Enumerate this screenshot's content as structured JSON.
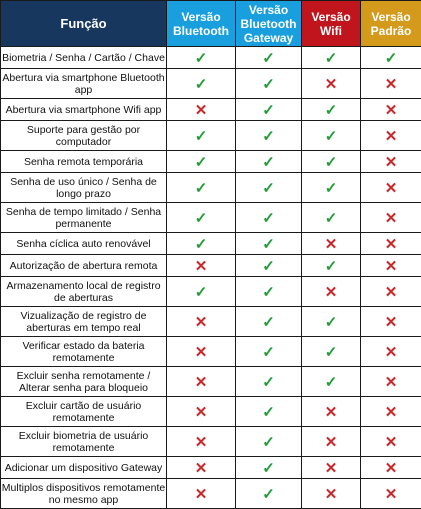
{
  "table": {
    "headers": [
      {
        "lines": [
          "Função"
        ],
        "color": "#17375e"
      },
      {
        "lines": [
          "Versão",
          "Bluetooth"
        ],
        "color": "#1a9fde"
      },
      {
        "lines": [
          "Versão",
          "Bluetooth",
          "Gateway"
        ],
        "color": "#1a9fde"
      },
      {
        "lines": [
          "Versão",
          "Wifi"
        ],
        "color": "#c0151c"
      },
      {
        "lines": [
          "Versão",
          "Padrão"
        ],
        "color": "#d49a1c"
      }
    ],
    "symbols": {
      "yes": "✓",
      "no": "✕",
      "yes_color": "#1e9e35",
      "no_color": "#c8282b"
    },
    "rows": [
      {
        "feature": "Biometria / Senha / Cartão / Chave",
        "lines": 1,
        "values": [
          "yes",
          "yes",
          "yes",
          "yes"
        ]
      },
      {
        "feature": "Abertura via smartphone Bluetooth app",
        "lines": 2,
        "values": [
          "yes",
          "yes",
          "no",
          "no"
        ]
      },
      {
        "feature": "Abertura via smartphone Wifi app",
        "lines": 1,
        "values": [
          "no",
          "yes",
          "yes",
          "no"
        ]
      },
      {
        "feature": "Suporte para gestão por computador",
        "lines": 2,
        "values": [
          "yes",
          "yes",
          "yes",
          "no"
        ]
      },
      {
        "feature": "Senha remota temporária",
        "lines": 1,
        "values": [
          "yes",
          "yes",
          "yes",
          "no"
        ]
      },
      {
        "feature": "Senha de uso único / Senha de longo prazo",
        "lines": 2,
        "values": [
          "yes",
          "yes",
          "yes",
          "no"
        ]
      },
      {
        "feature": "Senha de tempo limitado / Senha permanente",
        "lines": 2,
        "values": [
          "yes",
          "yes",
          "yes",
          "no"
        ]
      },
      {
        "feature": "Senha cíclica auto renovável",
        "lines": 1,
        "values": [
          "yes",
          "yes",
          "no",
          "no"
        ]
      },
      {
        "feature": "Autorização de abertura remota",
        "lines": 1,
        "values": [
          "no",
          "yes",
          "yes",
          "no"
        ]
      },
      {
        "feature": "Armazenamento local de registro de aberturas",
        "lines": 2,
        "values": [
          "yes",
          "yes",
          "no",
          "no"
        ]
      },
      {
        "feature": "Vizualização de registro de aberturas em tempo real",
        "lines": 2,
        "values": [
          "no",
          "yes",
          "yes",
          "no"
        ]
      },
      {
        "feature": "Verificar estado da bateria remotamente",
        "lines": 2,
        "values": [
          "no",
          "yes",
          "yes",
          "no"
        ]
      },
      {
        "feature": "Excluir senha remotamente / Alterar senha para bloqueio",
        "lines": 2,
        "values": [
          "no",
          "yes",
          "yes",
          "no"
        ]
      },
      {
        "feature": "Excluir cartão de usuário remotamente",
        "lines": 2,
        "values": [
          "no",
          "yes",
          "no",
          "no"
        ]
      },
      {
        "feature": "Excluir biometria de usuário remotamente",
        "lines": 2,
        "values": [
          "no",
          "yes",
          "no",
          "no"
        ]
      },
      {
        "feature": "Adicionar um dispositivo Gateway",
        "lines": 1,
        "values": [
          "no",
          "yes",
          "no",
          "no"
        ]
      },
      {
        "feature": "Multiplos dispositivos remotamente no mesmo app",
        "lines": 2,
        "values": [
          "no",
          "yes",
          "no",
          "no"
        ]
      }
    ]
  }
}
